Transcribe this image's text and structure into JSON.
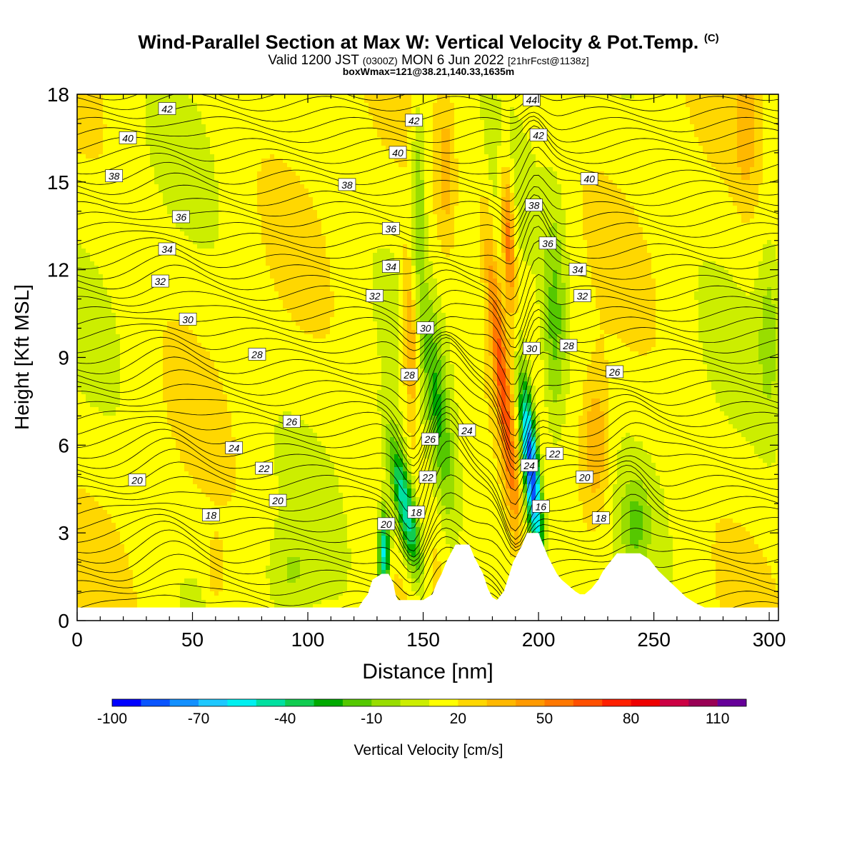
{
  "chart_data": {
    "type": "heatmap",
    "title": "Wind-Parallel Section at Max W: Vertical Velocity & Pot.Temp.",
    "copyright": "(C)",
    "subtitle_main": "Valid 1200 JST",
    "subtitle_utc": "(0300Z)",
    "subtitle_date": "MON 6 Jun 2022",
    "subtitle_fcst": "[21hrFcst@1138z]",
    "subtitle2": "boxWmax=121@38.21,140.33,1635m",
    "xlabel": "Distance [nm]",
    "ylabel": "Height [Kft MSL]",
    "xlim": [
      0,
      304
    ],
    "ylim": [
      0,
      18
    ],
    "x_ticks": [
      "0",
      "50",
      "100",
      "150",
      "200",
      "250",
      "300"
    ],
    "y_ticks": [
      "0",
      "3",
      "6",
      "9",
      "12",
      "15",
      "18"
    ],
    "colorbar": {
      "label": "Vertical Velocity [cm/s]",
      "tick_labels": [
        "-100",
        "-70",
        "-40",
        "-10",
        "20",
        "50",
        "80",
        "110"
      ],
      "colors": [
        "#0000ff",
        "#0a55ff",
        "#1390ff",
        "#1ec8ff",
        "#00f0f0",
        "#00e0a0",
        "#10cc50",
        "#00aa00",
        "#55c800",
        "#99dd00",
        "#ccee00",
        "#ffff00",
        "#ffd700",
        "#ffb800",
        "#ff9a00",
        "#ff7800",
        "#ff5000",
        "#ff2000",
        "#ee0000",
        "#cc0044",
        "#990055",
        "#660099"
      ]
    },
    "theta_labels": [
      {
        "x": 39,
        "y": 17.5,
        "t": "42"
      },
      {
        "x": 22,
        "y": 16.5,
        "t": "40"
      },
      {
        "x": 16,
        "y": 15.2,
        "t": "38"
      },
      {
        "x": 45,
        "y": 13.8,
        "t": "36"
      },
      {
        "x": 39,
        "y": 12.7,
        "t": "34"
      },
      {
        "x": 36,
        "y": 11.6,
        "t": "32"
      },
      {
        "x": 48,
        "y": 10.3,
        "t": "30"
      },
      {
        "x": 78,
        "y": 9.1,
        "t": "28"
      },
      {
        "x": 93,
        "y": 6.8,
        "t": "26"
      },
      {
        "x": 68,
        "y": 5.9,
        "t": "24"
      },
      {
        "x": 81,
        "y": 5.2,
        "t": "22"
      },
      {
        "x": 26,
        "y": 4.8,
        "t": "20"
      },
      {
        "x": 87,
        "y": 4.1,
        "t": "20"
      },
      {
        "x": 58,
        "y": 3.6,
        "t": "18"
      },
      {
        "x": 146,
        "y": 17.1,
        "t": "42"
      },
      {
        "x": 139,
        "y": 16.0,
        "t": "40"
      },
      {
        "x": 117,
        "y": 14.9,
        "t": "38"
      },
      {
        "x": 136,
        "y": 13.4,
        "t": "36"
      },
      {
        "x": 136,
        "y": 12.1,
        "t": "34"
      },
      {
        "x": 129,
        "y": 11.1,
        "t": "32"
      },
      {
        "x": 151,
        "y": 10.0,
        "t": "30"
      },
      {
        "x": 144,
        "y": 8.4,
        "t": "28"
      },
      {
        "x": 153,
        "y": 6.2,
        "t": "26"
      },
      {
        "x": 169,
        "y": 6.5,
        "t": "24"
      },
      {
        "x": 152,
        "y": 4.9,
        "t": "22"
      },
      {
        "x": 147,
        "y": 3.7,
        "t": "18"
      },
      {
        "x": 134,
        "y": 3.3,
        "t": "20"
      },
      {
        "x": 197,
        "y": 17.8,
        "t": "44"
      },
      {
        "x": 200,
        "y": 16.6,
        "t": "42"
      },
      {
        "x": 222,
        "y": 15.1,
        "t": "40"
      },
      {
        "x": 198,
        "y": 14.2,
        "t": "38"
      },
      {
        "x": 204,
        "y": 12.9,
        "t": "36"
      },
      {
        "x": 217,
        "y": 12.0,
        "t": "34"
      },
      {
        "x": 219,
        "y": 11.1,
        "t": "32"
      },
      {
        "x": 197,
        "y": 9.3,
        "t": "30"
      },
      {
        "x": 213,
        "y": 9.4,
        "t": "28"
      },
      {
        "x": 233,
        "y": 8.5,
        "t": "26"
      },
      {
        "x": 207,
        "y": 5.7,
        "t": "22"
      },
      {
        "x": 196,
        "y": 5.3,
        "t": "24"
      },
      {
        "x": 220,
        "y": 4.9,
        "t": "20"
      },
      {
        "x": 201,
        "y": 3.9,
        "t": "16"
      },
      {
        "x": 227,
        "y": 3.5,
        "t": "18"
      }
    ]
  }
}
